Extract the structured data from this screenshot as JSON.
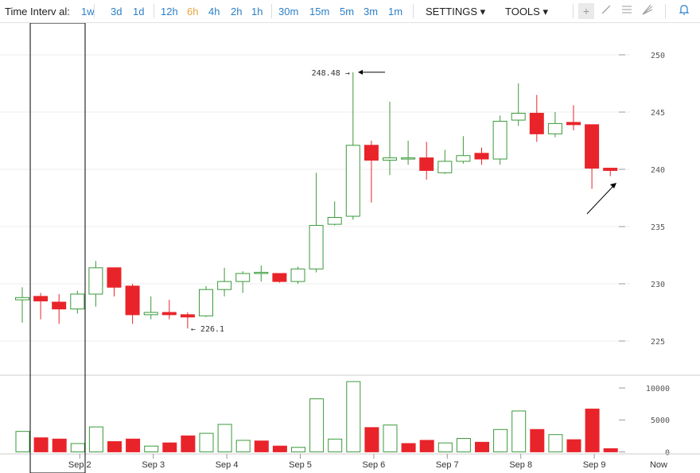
{
  "toolbar": {
    "title": "Time Interv al:",
    "intervals": [
      "1w",
      "3d",
      "1d",
      "12h",
      "6h",
      "4h",
      "2h",
      "1h",
      "30m",
      "15m",
      "5m",
      "3m",
      "1m"
    ],
    "active_interval": "6h",
    "settings_label": "SETTINGS ▾",
    "tools_label": "TOOLS ▾",
    "tool_icons": [
      "crosshair-icon",
      "line-draw-icon",
      "fib-lines-icon",
      "pitchfork-icon",
      "bell-icon"
    ]
  },
  "colors": {
    "up": "#3a9a3a",
    "down": "#e8242a",
    "grid": "#ececec",
    "axis": "#cccccc"
  },
  "chart_data": [
    {
      "type": "candlestick",
      "title": "",
      "xlabel": "",
      "ylabel": "",
      "ylim": [
        222.5,
        252.5
      ],
      "yticks": [
        225,
        230,
        235,
        240,
        245,
        250
      ],
      "xticks": [
        "Sep 2",
        "Sep 3",
        "Sep 4",
        "Sep 5",
        "Sep 6",
        "Sep 7",
        "Sep 8",
        "Sep 9"
      ],
      "xtick_candle_index": [
        3,
        7,
        11,
        15,
        19,
        23,
        27,
        31
      ],
      "now_label": "Now",
      "candles": [
        {
          "o": 228.6,
          "h": 229.7,
          "l": 226.6,
          "c": 228.8
        },
        {
          "o": 228.9,
          "h": 229.2,
          "l": 226.9,
          "c": 228.5
        },
        {
          "o": 228.4,
          "h": 229.1,
          "l": 226.5,
          "c": 227.8
        },
        {
          "o": 227.8,
          "h": 229.4,
          "l": 227.4,
          "c": 229.1
        },
        {
          "o": 229.1,
          "h": 232.0,
          "l": 228.0,
          "c": 231.4
        },
        {
          "o": 231.4,
          "h": 231.4,
          "l": 228.9,
          "c": 229.7
        },
        {
          "o": 229.8,
          "h": 230.0,
          "l": 226.5,
          "c": 227.3
        },
        {
          "o": 227.3,
          "h": 228.9,
          "l": 226.9,
          "c": 227.5
        },
        {
          "o": 227.5,
          "h": 228.6,
          "l": 226.9,
          "c": 227.3
        },
        {
          "o": 227.3,
          "h": 227.5,
          "l": 226.1,
          "c": 227.1
        },
        {
          "o": 227.2,
          "h": 229.8,
          "l": 227.1,
          "c": 229.5
        },
        {
          "o": 229.5,
          "h": 231.4,
          "l": 228.9,
          "c": 230.2
        },
        {
          "o": 230.2,
          "h": 231.1,
          "l": 229.2,
          "c": 230.9
        },
        {
          "o": 230.9,
          "h": 231.6,
          "l": 230.2,
          "c": 231.0
        },
        {
          "o": 230.9,
          "h": 230.9,
          "l": 230.1,
          "c": 230.2
        },
        {
          "o": 230.2,
          "h": 231.5,
          "l": 230.0,
          "c": 231.3
        },
        {
          "o": 231.3,
          "h": 239.7,
          "l": 231.0,
          "c": 235.1
        },
        {
          "o": 235.2,
          "h": 237.2,
          "l": 235.1,
          "c": 235.8
        },
        {
          "o": 235.9,
          "h": 248.48,
          "l": 235.6,
          "c": 242.1
        },
        {
          "o": 242.1,
          "h": 242.5,
          "l": 237.1,
          "c": 240.8
        },
        {
          "o": 240.8,
          "h": 245.9,
          "l": 239.5,
          "c": 241.0
        },
        {
          "o": 241.0,
          "h": 242.5,
          "l": 240.4,
          "c": 241.0
        },
        {
          "o": 241.0,
          "h": 242.4,
          "l": 239.1,
          "c": 239.9
        },
        {
          "o": 239.7,
          "h": 241.7,
          "l": 239.6,
          "c": 240.7
        },
        {
          "o": 240.7,
          "h": 242.9,
          "l": 240.5,
          "c": 241.2
        },
        {
          "o": 241.4,
          "h": 241.9,
          "l": 240.4,
          "c": 240.9
        },
        {
          "o": 240.9,
          "h": 244.7,
          "l": 240.4,
          "c": 244.2
        },
        {
          "o": 244.3,
          "h": 247.5,
          "l": 243.8,
          "c": 244.9
        },
        {
          "o": 244.9,
          "h": 246.5,
          "l": 242.4,
          "c": 243.1
        },
        {
          "o": 243.1,
          "h": 245.0,
          "l": 242.8,
          "c": 244.0
        },
        {
          "o": 244.1,
          "h": 245.6,
          "l": 243.4,
          "c": 243.9
        },
        {
          "o": 243.9,
          "h": 243.9,
          "l": 238.3,
          "c": 240.1
        },
        {
          "o": 240.1,
          "h": 240.1,
          "l": 239.4,
          "c": 239.9
        }
      ],
      "annotations": [
        {
          "text": "248.48 →",
          "candle": 18,
          "value": 248.48,
          "side": "left"
        },
        {
          "text": "← 226.1",
          "candle": 9,
          "value": 226.1,
          "side": "right"
        }
      ]
    },
    {
      "type": "bar",
      "title": "",
      "xlabel": "",
      "ylabel": "",
      "ylim": [
        -200,
        11500
      ],
      "yticks": [
        0,
        5000,
        10000
      ],
      "values": [
        3200,
        2200,
        2000,
        1300,
        3900,
        1600,
        2000,
        900,
        1400,
        2500,
        2900,
        4300,
        1800,
        1700,
        900,
        700,
        8300,
        2000,
        11000,
        3800,
        4200,
        1300,
        1800,
        1400,
        2100,
        1500,
        3500,
        6400,
        3500,
        2700,
        1900,
        6700,
        500
      ],
      "bar_up": [
        true,
        false,
        false,
        true,
        true,
        false,
        false,
        true,
        false,
        false,
        true,
        true,
        true,
        false,
        false,
        true,
        true,
        true,
        true,
        false,
        true,
        false,
        false,
        true,
        true,
        false,
        true,
        true,
        false,
        true,
        false,
        false,
        false
      ]
    }
  ]
}
